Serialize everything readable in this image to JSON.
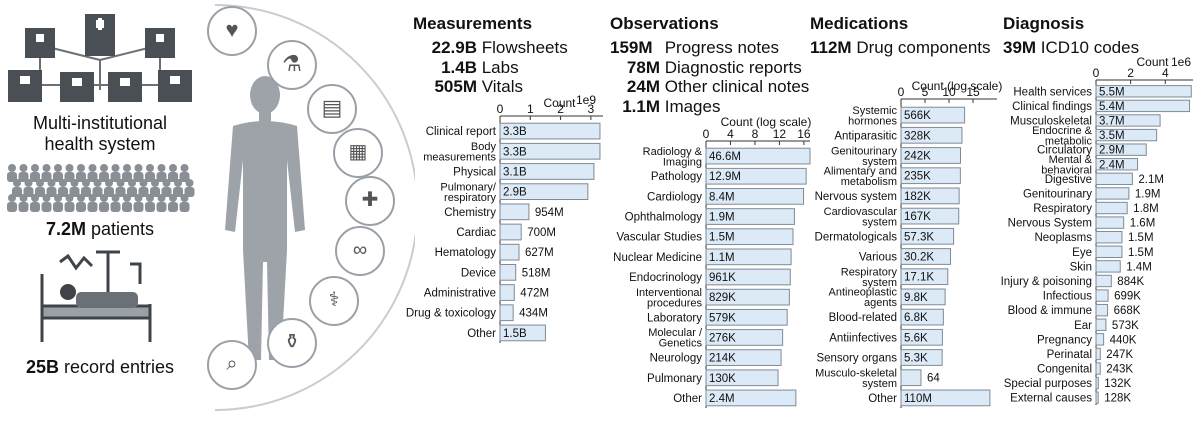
{
  "left": {
    "system_label_line1": "Multi-institutional",
    "system_label_line2": "health system",
    "patients_bold": "7.2M",
    "patients_rest": " patients",
    "records_bold": "25B",
    "records_rest": " record entries",
    "icons": [
      "hospital-network-icon",
      "crowd-icon",
      "patient-bed-icon",
      "heart-monitor-icon",
      "lab-flask-icon",
      "document-icon",
      "xray-icon",
      "bandage-icon",
      "dna-icon",
      "pills-microscope-icon",
      "medicine-bottle-icon",
      "clipboard-magnifier-icon"
    ]
  },
  "panels": [
    {
      "title": "Measurements",
      "stats": [
        {
          "num": "22.9B",
          "text": " Flowsheets"
        },
        {
          "num": "1.4B",
          "text": " Labs"
        },
        {
          "num": "505M",
          "text": " Vitals"
        }
      ]
    },
    {
      "title": "Observations",
      "stats": [
        {
          "num": "159M",
          "text": " Progress notes"
        },
        {
          "num": "78M",
          "text": " Diagnostic reports"
        },
        {
          "num": "24M",
          "text": " Other clinical notes"
        },
        {
          "num": "1.1M",
          "text": " Images"
        }
      ]
    },
    {
      "title": "Medications",
      "stats": [
        {
          "num": "112M",
          "text": " Drug components"
        }
      ]
    },
    {
      "title": "Diagnosis",
      "stats": [
        {
          "num": "39M",
          "text": " ICD10 codes"
        }
      ]
    }
  ],
  "chart_data": [
    {
      "type": "bar",
      "orientation": "horizontal",
      "scale": "linear",
      "xlabel": "Count",
      "exponent": "1e9",
      "xlim": [
        0,
        3.4
      ],
      "ticks": [
        0,
        1,
        2,
        3
      ],
      "tick_labels": [
        "0",
        "1",
        "2",
        "3"
      ],
      "categories": [
        [
          "Clinical report"
        ],
        [
          "Body",
          "measurements"
        ],
        [
          "Physical"
        ],
        [
          "Pulmonary/",
          "respiratory"
        ],
        [
          "Chemistry"
        ],
        [
          "Cardiac"
        ],
        [
          "Hematology"
        ],
        [
          "Device"
        ],
        [
          "Administrative"
        ],
        [
          "Drug & toxicology"
        ],
        [
          "Other"
        ]
      ],
      "values": [
        3.3,
        3.3,
        3.1,
        2.9,
        0.954,
        0.7,
        0.627,
        0.518,
        0.472,
        0.434,
        1.5
      ],
      "labels": [
        "3.3B",
        "3.3B",
        "3.1B",
        "2.9B",
        "954M",
        "700M",
        "627M",
        "518M",
        "472M",
        "434M",
        "1.5B"
      ],
      "bar_color": "#dce9f6",
      "edge_color": "#7f8b96"
    },
    {
      "type": "bar",
      "orientation": "horizontal",
      "scale": "log",
      "xlabel": "Count (log scale)",
      "exponent": "",
      "xlim": [
        0,
        17
      ],
      "ticks": [
        0,
        4,
        8,
        12,
        16
      ],
      "tick_labels": [
        "0",
        "4",
        "8",
        "12",
        "16"
      ],
      "categories": [
        [
          "Radiology &",
          "Imaging"
        ],
        [
          "Pathology"
        ],
        [
          "Cardiology"
        ],
        [
          "Ophthalmology"
        ],
        [
          "Vascular Studies"
        ],
        [
          "Nuclear Medicine"
        ],
        [
          "Endocrinology"
        ],
        [
          "Interventional",
          "procedures"
        ],
        [
          "Laboratory"
        ],
        [
          "Molecular /",
          "Genetics"
        ],
        [
          "Neurology"
        ],
        [
          "Pulmonary"
        ],
        [
          "Other"
        ]
      ],
      "values": [
        46600000,
        12900000,
        8400000,
        1900000,
        1500000,
        1100000,
        961000,
        829000,
        579000,
        276000,
        214000,
        130000,
        2400000
      ],
      "labels": [
        "46.6M",
        "12.9M",
        "8.4M",
        "1.9M",
        "1.5M",
        "1.1M",
        "961K",
        "829K",
        "579K",
        "276K",
        "214K",
        "130K",
        "2.4M"
      ],
      "bar_color": "#dce9f6",
      "edge_color": "#7f8b96"
    },
    {
      "type": "bar",
      "orientation": "horizontal",
      "scale": "log",
      "xlabel": "Count (log scale)",
      "exponent": "",
      "xlim": [
        0,
        20
      ],
      "ticks": [
        0,
        5,
        10,
        15
      ],
      "tick_labels": [
        "0",
        "5",
        "10",
        "15"
      ],
      "categories": [
        [
          "Systemic",
          "hormones"
        ],
        [
          "Antiparasitic"
        ],
        [
          "Genitourinary",
          "system"
        ],
        [
          "Alimentary and",
          "metabolism"
        ],
        [
          "Nervous system"
        ],
        [
          "Cardiovascular",
          "system"
        ],
        [
          "Dermatologicals"
        ],
        [
          "Various"
        ],
        [
          "Respiratory",
          "system"
        ],
        [
          "Antineoplastic",
          "agents"
        ],
        [
          "Blood-related"
        ],
        [
          "Antiinfectives"
        ],
        [
          "Sensory organs"
        ],
        [
          "Musculo-skeletal",
          "system"
        ],
        [
          "Other"
        ]
      ],
      "values": [
        566000,
        328000,
        242000,
        235000,
        182000,
        167000,
        57300,
        30200,
        17100,
        9800,
        6800,
        5600,
        5300,
        64,
        110000000
      ],
      "labels": [
        "566K",
        "328K",
        "242K",
        "235K",
        "182K",
        "167K",
        "57.3K",
        "30.2K",
        "17.1K",
        "9.8K",
        "6.8K",
        "5.6K",
        "5.3K",
        "64",
        "110M"
      ],
      "bar_color": "#dce9f6",
      "edge_color": "#7f8b96"
    },
    {
      "type": "bar",
      "orientation": "horizontal",
      "scale": "linear",
      "xlabel": "Count",
      "exponent": "1e6",
      "xlim": [
        0,
        5.6
      ],
      "ticks": [
        0,
        2,
        4
      ],
      "tick_labels": [
        "0",
        "2",
        "4"
      ],
      "categories": [
        [
          "Health services"
        ],
        [
          "Clinical findings"
        ],
        [
          "Musculoskeletal"
        ],
        [
          "Endocrine &",
          "metabolic"
        ],
        [
          "Circulatory"
        ],
        [
          "Mental &",
          "behavioral"
        ],
        [
          "Digestive"
        ],
        [
          "Genitourinary"
        ],
        [
          "Respiratory"
        ],
        [
          "Nervous System"
        ],
        [
          "Neoplasms"
        ],
        [
          "Eye"
        ],
        [
          "Skin"
        ],
        [
          "Injury & poisoning"
        ],
        [
          "Infectious"
        ],
        [
          "Blood & immune"
        ],
        [
          "Ear"
        ],
        [
          "Pregnancy"
        ],
        [
          "Perinatal"
        ],
        [
          "Congenital"
        ],
        [
          "Special purposes"
        ],
        [
          "External causes"
        ]
      ],
      "values": [
        5.5,
        5.4,
        3.7,
        3.5,
        2.9,
        2.4,
        2.1,
        1.9,
        1.8,
        1.6,
        1.5,
        1.5,
        1.4,
        0.884,
        0.699,
        0.668,
        0.573,
        0.44,
        0.247,
        0.243,
        0.132,
        0.128
      ],
      "labels": [
        "5.5M",
        "5.4M",
        "3.7M",
        "3.5M",
        "2.9M",
        "2.4M",
        "2.1M",
        "1.9M",
        "1.8M",
        "1.6M",
        "1.5M",
        "1.5M",
        "1.4M",
        "884K",
        "699K",
        "668K",
        "573K",
        "440K",
        "247K",
        "243K",
        "132K",
        "128K"
      ],
      "bar_color": "#dce9f6",
      "edge_color": "#7f8b96"
    }
  ]
}
